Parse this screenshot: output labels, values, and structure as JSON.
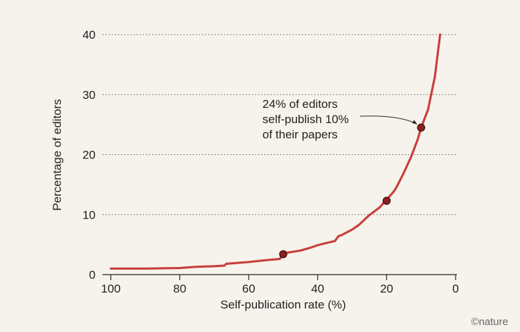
{
  "chart_data": {
    "type": "line",
    "xlabel": "Self-publication rate (%)",
    "ylabel": "Percentage of editors",
    "x_reversed": true,
    "xlim": [
      100,
      0
    ],
    "ylim": [
      0,
      40
    ],
    "x_ticks": [
      100,
      80,
      60,
      40,
      20,
      0
    ],
    "y_ticks": [
      0,
      10,
      20,
      30,
      40
    ],
    "grid": "horizontal dotted",
    "series": [
      {
        "color": "#c8403d",
        "x": [
          100,
          90,
          80,
          75,
          70,
          67,
          66.5,
          60,
          55,
          51,
          50.5,
          50,
          49.5,
          45,
          42,
          40,
          38,
          35,
          34,
          33,
          30,
          28,
          26,
          25,
          22,
          20.5,
          20,
          18,
          17,
          15,
          13,
          11,
          10,
          8,
          6,
          4.5
        ],
        "y": [
          1.0,
          1.0,
          1.1,
          1.3,
          1.4,
          1.5,
          1.8,
          2.1,
          2.4,
          2.6,
          3.0,
          3.5,
          3.6,
          4.0,
          4.5,
          4.9,
          5.2,
          5.6,
          6.4,
          6.6,
          7.5,
          8.3,
          9.4,
          9.9,
          11.2,
          12.2,
          12.5,
          13.8,
          14.7,
          17.0,
          19.5,
          22.5,
          24.5,
          27.5,
          33.0,
          40.0
        ]
      }
    ],
    "markers": [
      {
        "x": 50,
        "y": 3.4
      },
      {
        "x": 20,
        "y": 12.3
      },
      {
        "x": 10,
        "y": 24.5
      }
    ],
    "annotation": {
      "lines": [
        "24% of editors",
        "self-publish 10%",
        "of their papers"
      ],
      "target_x": 10,
      "target_y": 24.5
    },
    "credit": "©nature",
    "colors": {
      "line": "#c8403d",
      "marker_fill": "#8e1f1d",
      "marker_stroke": "#3a0c0b",
      "background": "#f5f3ec"
    }
  }
}
